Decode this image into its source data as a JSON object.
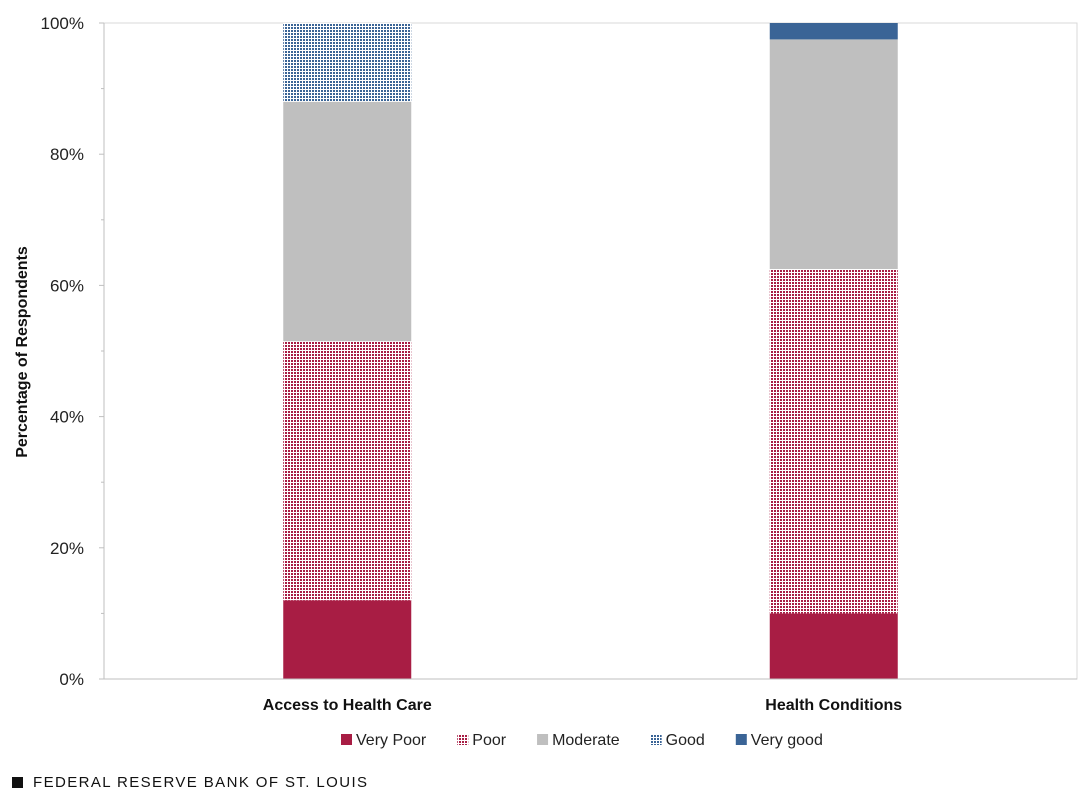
{
  "chart_data": {
    "type": "bar",
    "stacked": true,
    "categories": [
      "Access to Health Care",
      "Health Conditions"
    ],
    "series": [
      {
        "name": "Very Poor",
        "values": [
          12,
          10
        ],
        "color": "#A81D44",
        "pattern": "solid"
      },
      {
        "name": "Poor",
        "values": [
          39.5,
          52.5
        ],
        "color": "#A81D44",
        "pattern": "dots"
      },
      {
        "name": "Moderate",
        "values": [
          36.5,
          35
        ],
        "color": "#BFBFBF",
        "pattern": "solid"
      },
      {
        "name": "Good",
        "values": [
          12,
          0
        ],
        "color": "#3A6496",
        "pattern": "dots"
      },
      {
        "name": "Very good",
        "values": [
          0,
          2.5
        ],
        "color": "#3A6496",
        "pattern": "solid"
      }
    ],
    "ylabel": "Percentage of Respondents",
    "xlabel": "",
    "ylim": [
      0,
      100
    ],
    "yticks": [
      "0%",
      "20%",
      "40%",
      "60%",
      "80%",
      "100%"
    ],
    "grid": false,
    "legend": "bottom"
  },
  "footer": {
    "source": "FEDERAL RESERVE BANK OF ST. LOUIS"
  }
}
